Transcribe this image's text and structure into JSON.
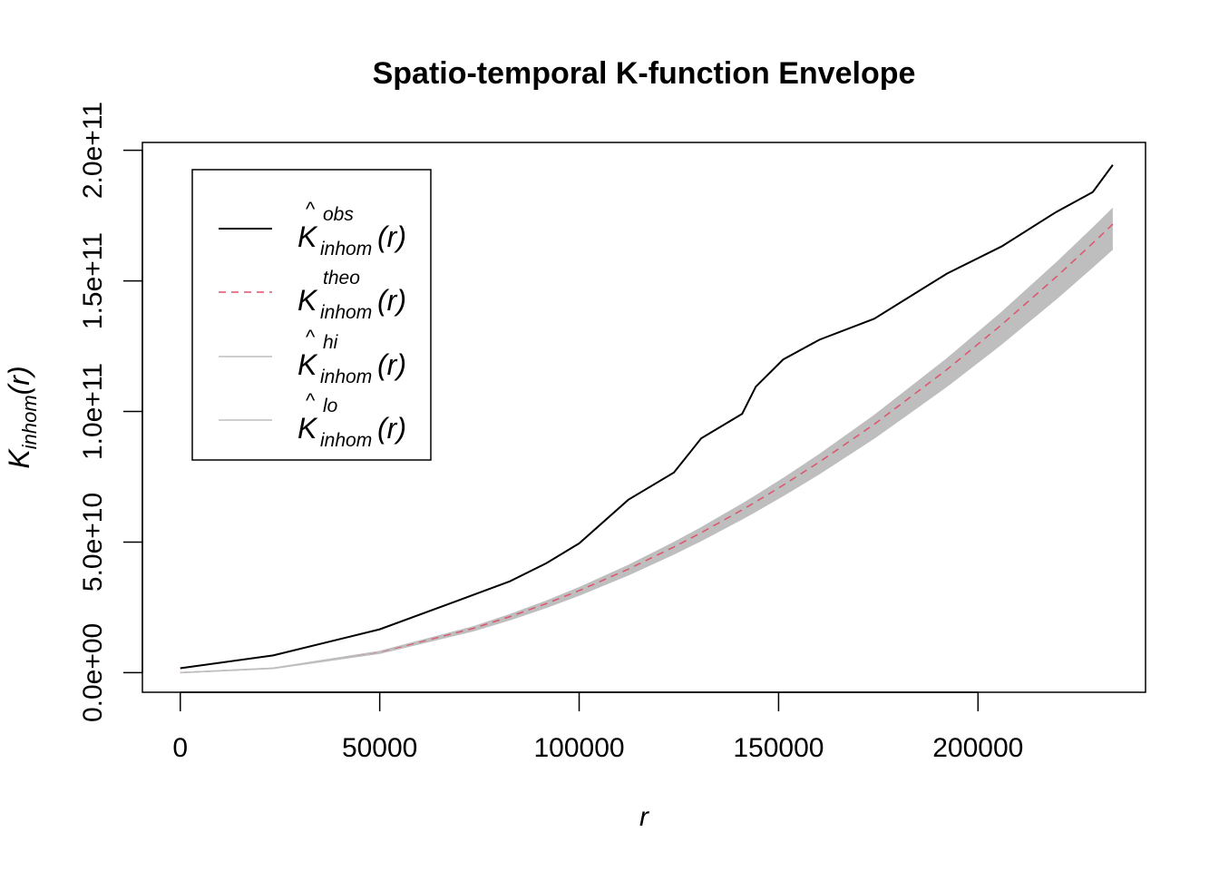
{
  "chart_data": {
    "type": "line",
    "title": "Spatio-temporal K-function Envelope",
    "xlabel": "r",
    "ylabel": {
      "main": "K",
      "sub": "inhom",
      "arg": "(r)"
    },
    "xlim": [
      -9500,
      242000
    ],
    "ylim": [
      -7500000000.0,
      203000000000.0
    ],
    "xticks": [
      0,
      50000,
      100000,
      150000,
      200000
    ],
    "xtick_labels": [
      "0",
      "50000",
      "100000",
      "150000",
      "200000"
    ],
    "yticks": [
      0,
      50000000000.0,
      100000000000.0,
      150000000000.0,
      200000000000.0
    ],
    "ytick_labels": [
      "0.0e+00",
      "5.0e+10",
      "1.0e+11",
      "1.5e+11",
      "2.0e+11"
    ],
    "r": [
      0,
      23288,
      50000,
      73516,
      82648,
      91781,
      100000,
      112329,
      123744,
      130594,
      140868,
      144292,
      151142,
      160274,
      173973,
      192238,
      205936,
      219635,
      228767,
      233790
    ],
    "series": [
      {
        "name": "obs",
        "color": "#000000",
        "style": "solid",
        "values": [
          1700000000.0,
          6600000000.0,
          16600000000.0,
          29800000000.0,
          35000000000.0,
          41900000000.0,
          49500000000.0,
          66200000000.0,
          76600000000.0,
          89700000000.0,
          99100000000.0,
          109500000000.0,
          119900000000.0,
          127500000000.0,
          135500000000.0,
          152800000000.0,
          163200000000.0,
          176400000000.0,
          184000000000.0,
          194400000000.0
        ]
      },
      {
        "name": "theo",
        "color": "#DF536B",
        "style": "dashed",
        "values": [
          0,
          1704000000.0,
          7854000000.0,
          16980000000.0,
          21460000000.0,
          26460000000.0,
          31416000000.0,
          39640000000.0,
          48110000000.0,
          53580000000.0,
          62340000000.0,
          65410000000.0,
          71770000000.0,
          80700000000.0,
          95090000000.0,
          116100000000.0,
          133230000000.0,
          151550000000.0,
          164410000000.0,
          171710000000.0
        ]
      },
      {
        "name": "hi",
        "color": "#BEBEBE",
        "style": "solid",
        "values": [
          0,
          1764000000.0,
          8129000000.0,
          17570000000.0,
          22210000000.0,
          27390000000.0,
          32520000000.0,
          41030000000.0,
          49790000000.0,
          55460000000.0,
          64520000000.0,
          67700000000.0,
          74280000000.0,
          83520000000.0,
          98420000000.0,
          120160000000.0,
          137890000000.0,
          156850000000.0,
          170160000000.0,
          177720000000.0
        ]
      },
      {
        "name": "lo",
        "color": "#BEBEBE",
        "style": "solid",
        "values": [
          0,
          1610000000.0,
          7422000000.0,
          16050000000.0,
          20280000000.0,
          25000000000.0,
          29690000000.0,
          37460000000.0,
          45460000000.0,
          50630000000.0,
          58910000000.0,
          61810000000.0,
          67820000000.0,
          76260000000.0,
          89860000000.0,
          109710000000.0,
          125900000000.0,
          143210000000.0,
          155370000000.0,
          162270000000.0
        ]
      }
    ],
    "legend": {
      "placement": "top-left",
      "entries": [
        {
          "base": "K",
          "hat": "^",
          "sup": "obs",
          "sub": "inhom",
          "arg": "(r)"
        },
        {
          "base": "K",
          "hat": "",
          "sup": "theo",
          "sub": "inhom",
          "arg": "(r)"
        },
        {
          "base": "K",
          "hat": "^",
          "sup": "hi",
          "sub": "inhom",
          "arg": "(r)"
        },
        {
          "base": "K",
          "hat": "^",
          "sup": "lo",
          "sub": "inhom",
          "arg": "(r)"
        }
      ]
    }
  }
}
